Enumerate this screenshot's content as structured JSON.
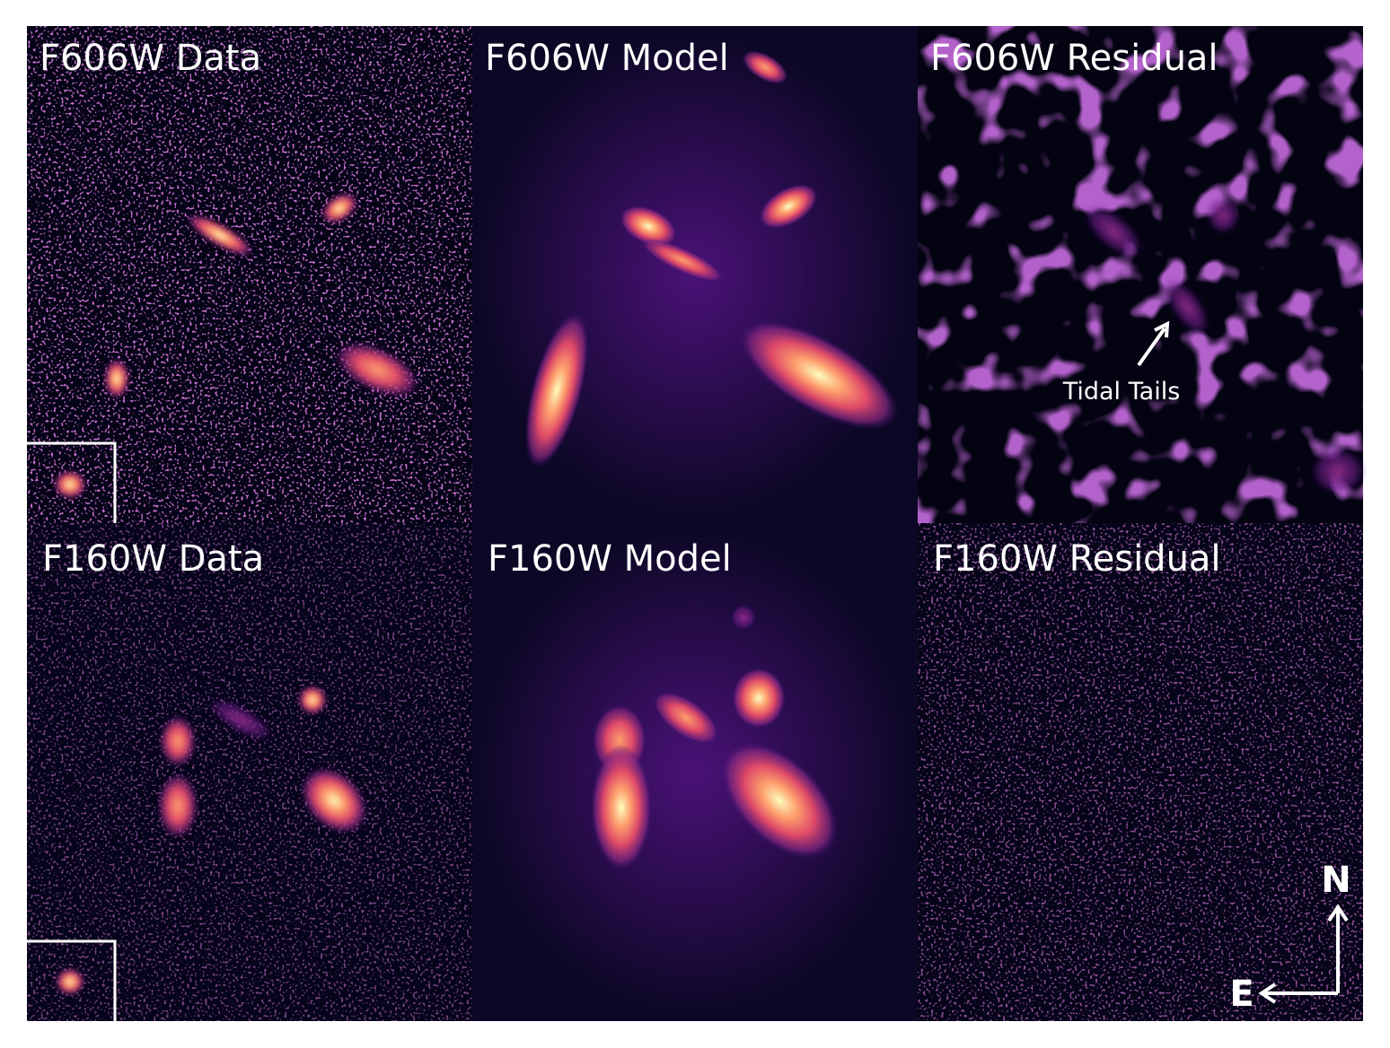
{
  "panels": [
    {
      "label": "F606W Data"
    },
    {
      "label": "F606W Model"
    },
    {
      "label": "F606W Residual"
    },
    {
      "label": "F160W Data"
    },
    {
      "label": "F160W Model"
    },
    {
      "label": "F160W Residual"
    }
  ],
  "annotation": "Tidal Tails",
  "compass": {
    "north": "N",
    "east": "E"
  }
}
